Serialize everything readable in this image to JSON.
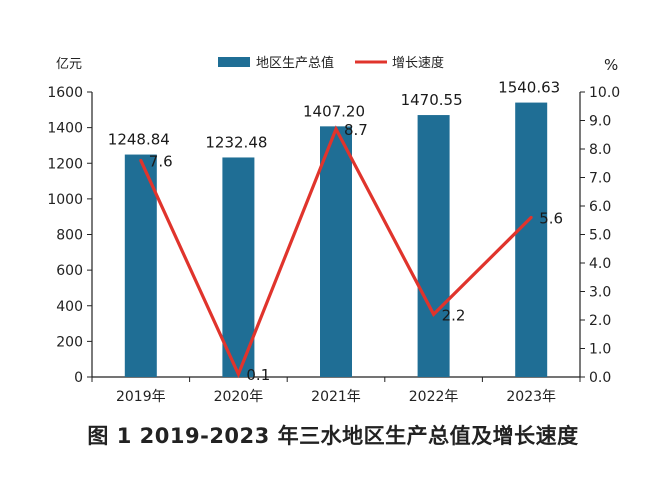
{
  "caption": "图 1 2019-2023 年三水地区生产总值及增长速度",
  "colors": {
    "bar": "#1f6e95",
    "line": "#e0342c",
    "axis": "#222222"
  },
  "chart_data": {
    "type": "bar",
    "categories": [
      "2019年",
      "2020年",
      "2021年",
      "2022年",
      "2023年"
    ],
    "series": [
      {
        "name": "地区生产总值",
        "type": "bar",
        "axis": "left",
        "values": [
          1248.84,
          1232.48,
          1407.2,
          1470.55,
          1540.63
        ],
        "labels": [
          "1248.84",
          "1232.48",
          "1407.20",
          "1470.55",
          "1540.63"
        ]
      },
      {
        "name": "增长速度",
        "type": "line",
        "axis": "right",
        "values": [
          7.6,
          0.1,
          8.7,
          2.2,
          5.6
        ],
        "labels": [
          "7.6",
          "0.1",
          "8.7",
          "2.2",
          "5.6"
        ]
      }
    ],
    "y_left": {
      "label": "亿元",
      "range": [
        0,
        1600
      ],
      "ticks": [
        "0",
        "200",
        "400",
        "600",
        "800",
        "1000",
        "1200",
        "1400",
        "1600"
      ]
    },
    "y_right": {
      "label": "%",
      "range": [
        0,
        10
      ],
      "ticks": [
        "0.0",
        "1.0",
        "2.0",
        "3.0",
        "4.0",
        "5.0",
        "6.0",
        "7.0",
        "8.0",
        "9.0",
        "10.0"
      ]
    },
    "legend_position": "top-center",
    "grid": false
  }
}
